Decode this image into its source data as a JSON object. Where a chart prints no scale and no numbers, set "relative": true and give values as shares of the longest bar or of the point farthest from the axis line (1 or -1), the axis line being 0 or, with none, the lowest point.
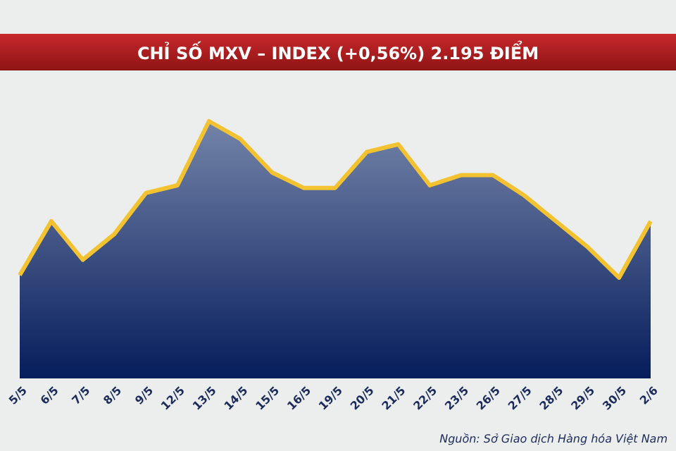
{
  "chart_data": {
    "type": "area",
    "title": "CHỈ SỐ MXV – INDEX (+0,56%) 2.195 ĐIỂM",
    "relative": true,
    "categories": [
      "5/5",
      "6/5",
      "7/5",
      "8/5",
      "9/5",
      "12/5",
      "13/5",
      "14/5",
      "15/5",
      "16/5",
      "19/5",
      "20/5",
      "21/5",
      "22/5",
      "23/5",
      "26/5",
      "27/5",
      "28/5",
      "29/5",
      "30/5",
      "2/6"
    ],
    "series": [
      {
        "color": "#f2c230",
        "values": [
          0.4,
          0.61,
          0.46,
          0.56,
          0.72,
          0.75,
          1,
          0.93,
          0.8,
          0.74,
          0.74,
          0.88,
          0.91,
          0.75,
          0.79,
          0.79,
          0.71,
          0.61,
          0.51,
          0.39,
          0.61
        ]
      }
    ],
    "annotations": [
      "Nguồn: Sở Giao dịch Hàng hóa Việt Nam"
    ]
  }
}
